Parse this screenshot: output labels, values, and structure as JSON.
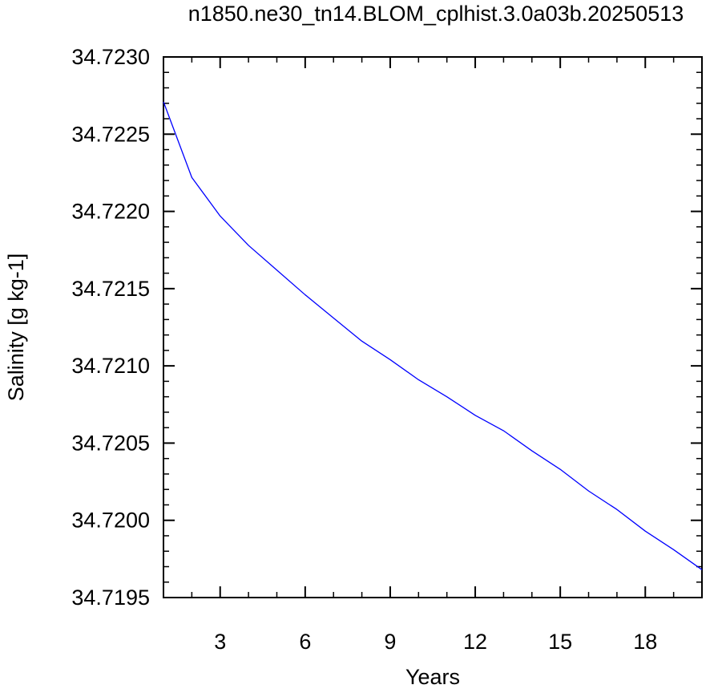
{
  "chart_data": {
    "type": "line",
    "title": "n1850.ne30_tn14.BLOM_cplhist.3.0a03b.20250513",
    "xlabel": "Years",
    "ylabel": "Salinity [g kg-1]",
    "xlim": [
      1,
      20
    ],
    "ylim": [
      34.7195,
      34.723
    ],
    "x_ticks": [
      3,
      6,
      9,
      12,
      15,
      18
    ],
    "x_tick_labels": [
      "3",
      "6",
      "9",
      "12",
      "15",
      "18"
    ],
    "y_ticks": [
      34.7195,
      34.72,
      34.7205,
      34.721,
      34.7215,
      34.722,
      34.7225,
      34.723
    ],
    "y_tick_labels": [
      "34.7195",
      "34.7200",
      "34.7205",
      "34.7210",
      "34.7215",
      "34.7220",
      "34.7225",
      "34.7230"
    ],
    "grid": false,
    "line_color": "#0000ff",
    "series": [
      {
        "x": [
          1,
          2,
          3,
          4,
          5,
          6,
          7,
          8,
          9,
          10,
          11,
          12,
          13,
          14,
          15,
          16,
          17,
          18,
          19,
          20
        ],
        "values": [
          34.72271,
          34.72222,
          34.72197,
          34.72178,
          34.72162,
          34.72146,
          34.72131,
          34.72116,
          34.72104,
          34.72091,
          34.7208,
          34.72068,
          34.72058,
          34.72045,
          34.72033,
          34.72019,
          34.72007,
          34.71993,
          34.71981,
          34.71968
        ]
      }
    ]
  }
}
